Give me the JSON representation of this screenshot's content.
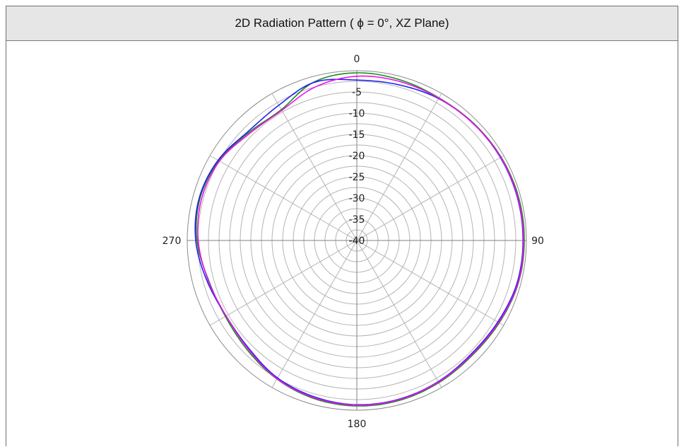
{
  "window": {
    "title": "2D Radiation Pattern ( ϕ = 0°, XZ Plane)"
  },
  "chart_data": {
    "type": "polar",
    "title": "2D Radiation Pattern ( ϕ = 0°, XZ Plane)",
    "angle_labels": [
      "0",
      "90",
      "180",
      "270"
    ],
    "radial_labels": [
      "-5",
      "-10",
      "-15",
      "-20",
      "-25",
      "-30",
      "-35",
      "-40"
    ],
    "radial_range": [
      -40,
      0
    ],
    "grid": true,
    "angles": [
      0,
      15,
      30,
      45,
      60,
      75,
      90,
      105,
      120,
      135,
      150,
      165,
      180,
      195,
      210,
      225,
      240,
      255,
      270,
      285,
      300,
      315,
      330,
      345,
      360
    ],
    "series": [
      {
        "color": "#1a8c1a",
        "values": [
          -0.5,
          -0.8,
          -1.2,
          -1.0,
          -0.7,
          -0.5,
          -0.5,
          -0.6,
          -1.2,
          -1.6,
          -1.3,
          -1.0,
          -1.0,
          -1.4,
          -2.3,
          -3.5,
          -4.2,
          -3.8,
          -2.3,
          -1.7,
          -2.4,
          -4.0,
          -4.4,
          -1.3,
          -0.5
        ]
      },
      {
        "color": "#2222ee",
        "values": [
          -2.2,
          -2.0,
          -1.4,
          -1.1,
          -0.9,
          -0.8,
          -0.8,
          -0.9,
          -1.6,
          -2.0,
          -1.6,
          -1.3,
          -1.3,
          -1.8,
          -2.6,
          -4.0,
          -4.4,
          -3.4,
          -2.0,
          -1.5,
          -2.2,
          -3.7,
          -3.2,
          -1.4,
          -2.2
        ]
      },
      {
        "color": "#ee10ee",
        "values": [
          -1.3,
          -1.2,
          -1.3,
          -1.1,
          -0.8,
          -0.7,
          -0.7,
          -0.7,
          -1.4,
          -1.8,
          -1.5,
          -1.2,
          -1.2,
          -1.6,
          -2.4,
          -3.8,
          -4.4,
          -3.7,
          -2.6,
          -2.1,
          -2.6,
          -4.3,
          -4.6,
          -2.5,
          -1.3
        ]
      }
    ]
  }
}
